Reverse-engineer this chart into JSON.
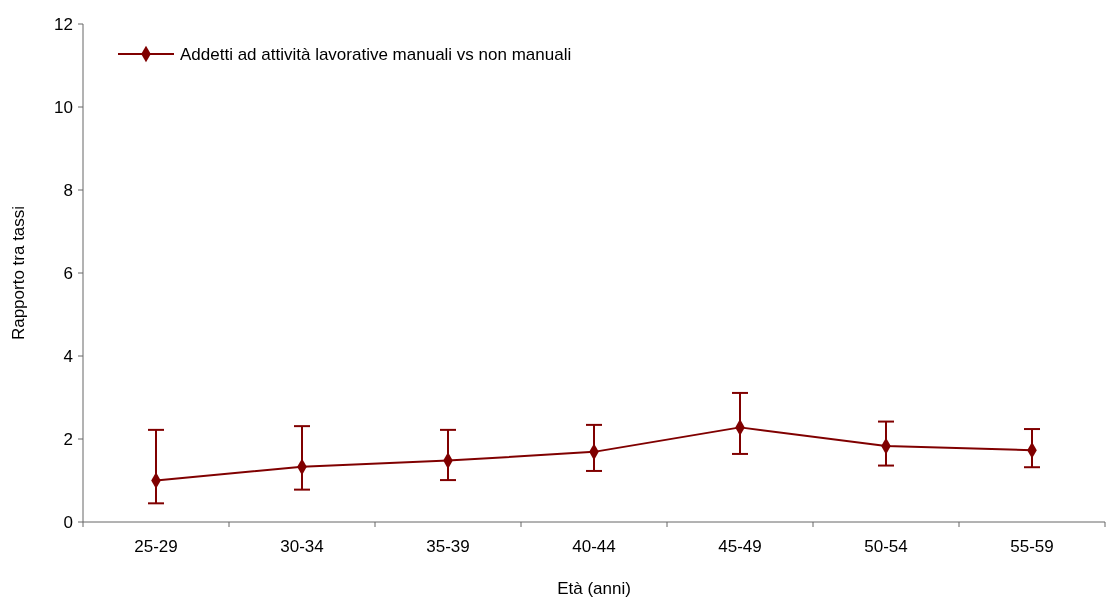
{
  "chart_data": {
    "type": "line",
    "xlabel": "Età (anni)",
    "ylabel": "Rapporto tra tassi",
    "categories": [
      "25-29",
      "30-34",
      "35-39",
      "40-44",
      "45-49",
      "50-54",
      "55-59"
    ],
    "series": [
      {
        "name": "Addetti ad attività lavorative manuali vs non manuali",
        "color": "#800000",
        "values": [
          1.0,
          1.33,
          1.48,
          1.69,
          2.28,
          1.83,
          1.73
        ],
        "errors": [
          [
            0.45,
            2.22
          ],
          [
            0.78,
            2.31
          ],
          [
            1.01,
            2.22
          ],
          [
            1.23,
            2.34
          ],
          [
            1.64,
            3.11
          ],
          [
            1.36,
            2.42
          ],
          [
            1.32,
            2.24
          ]
        ]
      }
    ],
    "ylim": [
      0,
      12
    ],
    "yticks": [
      0,
      2,
      4,
      6,
      8,
      10,
      12
    ],
    "grid": false,
    "legend": "top left",
    "marker": "diamond",
    "line_style": "solid"
  }
}
